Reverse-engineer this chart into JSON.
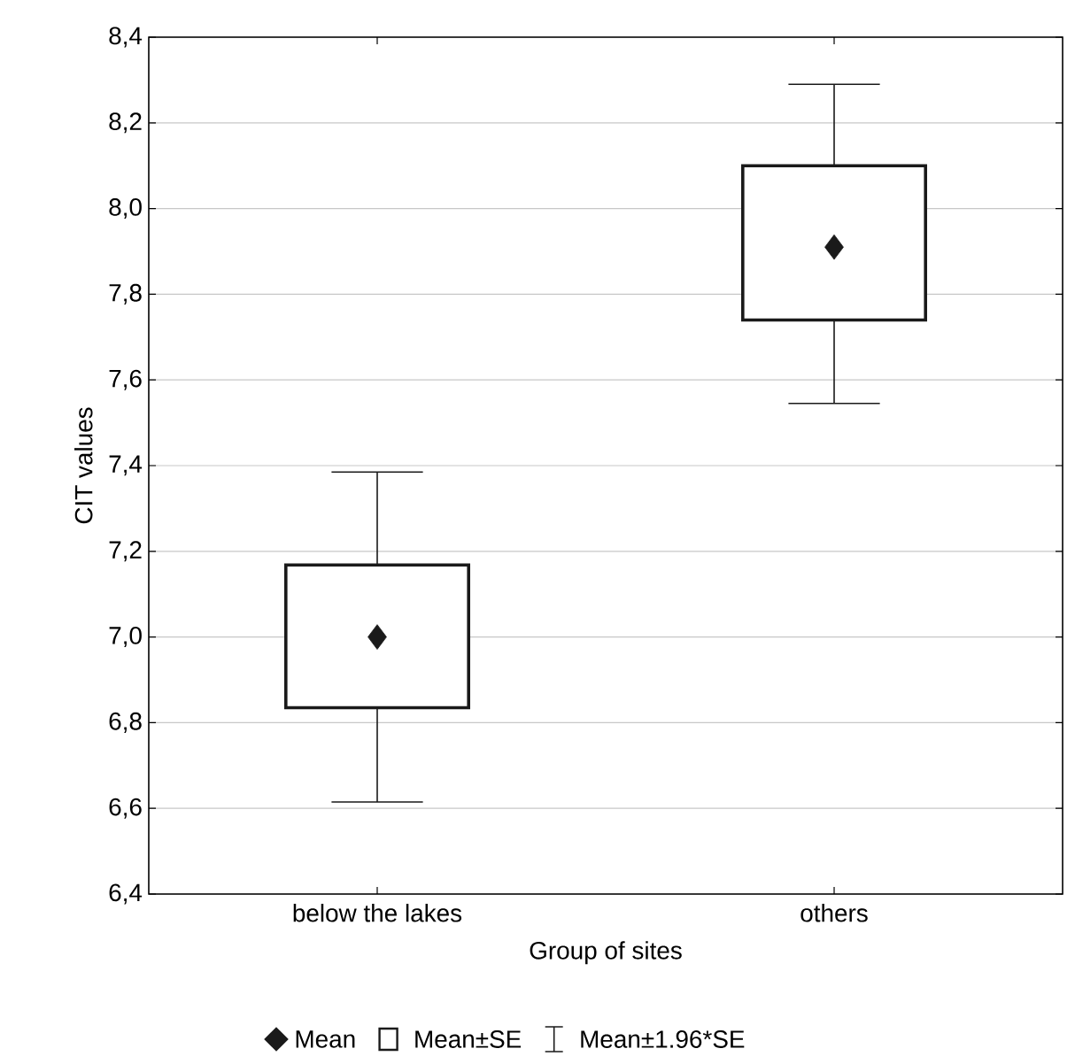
{
  "chart_data": {
    "type": "box",
    "xlabel": "Group of sites",
    "ylabel": "CIT values",
    "categories": [
      "below the lakes",
      "others"
    ],
    "boxes": [
      {
        "low": 6.615,
        "q1": 6.835,
        "q3": 7.168,
        "high": 7.385,
        "mean": 7.0
      },
      {
        "low": 7.545,
        "q1": 7.74,
        "q3": 8.1,
        "high": 8.29,
        "mean": 7.91
      }
    ],
    "color": "#1a1a1a",
    "marker": "diamond",
    "annotations": [
      "Mean",
      "Mean±SE",
      "Mean±1.96*SE"
    ],
    "ylim": [
      6.4,
      8.4
    ],
    "yticks": [
      {
        "value": 6.4,
        "label": "6,4"
      },
      {
        "value": 6.6,
        "label": "6,6"
      },
      {
        "value": 6.8,
        "label": "6,8"
      },
      {
        "value": 7.0,
        "label": "7,0"
      },
      {
        "value": 7.2,
        "label": "7,2"
      },
      {
        "value": 7.4,
        "label": "7,4"
      },
      {
        "value": 7.6,
        "label": "7,6"
      },
      {
        "value": 7.8,
        "label": "7,8"
      },
      {
        "value": 8.0,
        "label": "8,0"
      },
      {
        "value": 8.2,
        "label": "8,2"
      },
      {
        "value": 8.4,
        "label": "8,4"
      }
    ],
    "grid": "y"
  }
}
